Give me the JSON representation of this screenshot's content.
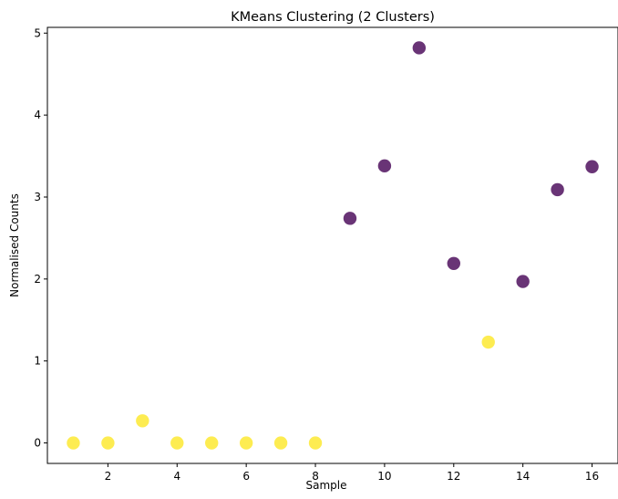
{
  "chart_data": {
    "type": "scatter",
    "title": "KMeans Clustering (2 Clusters)",
    "xlabel": "Sample",
    "ylabel": "Normalised Counts",
    "xlim": [
      0.25,
      16.75
    ],
    "ylim": [
      -0.25,
      5.07
    ],
    "xticks": [
      2,
      4,
      6,
      8,
      10,
      12,
      14,
      16
    ],
    "yticks": [
      0,
      1,
      2,
      3,
      4,
      5
    ],
    "grid": false,
    "legend": "none",
    "cluster_colors": [
      "#440154",
      "#fde725"
    ],
    "marker_alpha": 0.8,
    "points": [
      {
        "x": 1,
        "y": 0.0,
        "cluster": 1
      },
      {
        "x": 2,
        "y": 0.0,
        "cluster": 1
      },
      {
        "x": 3,
        "y": 0.27,
        "cluster": 1
      },
      {
        "x": 4,
        "y": 0.0,
        "cluster": 1
      },
      {
        "x": 5,
        "y": 0.0,
        "cluster": 1
      },
      {
        "x": 6,
        "y": 0.0,
        "cluster": 1
      },
      {
        "x": 7,
        "y": 0.0,
        "cluster": 1
      },
      {
        "x": 8,
        "y": 0.0,
        "cluster": 1
      },
      {
        "x": 9,
        "y": 2.74,
        "cluster": 0
      },
      {
        "x": 10,
        "y": 3.38,
        "cluster": 0
      },
      {
        "x": 11,
        "y": 4.82,
        "cluster": 0
      },
      {
        "x": 12,
        "y": 2.19,
        "cluster": 0
      },
      {
        "x": 13,
        "y": 1.23,
        "cluster": 1
      },
      {
        "x": 14,
        "y": 1.97,
        "cluster": 0
      },
      {
        "x": 15,
        "y": 3.09,
        "cluster": 0
      },
      {
        "x": 16,
        "y": 3.37,
        "cluster": 0
      }
    ]
  }
}
